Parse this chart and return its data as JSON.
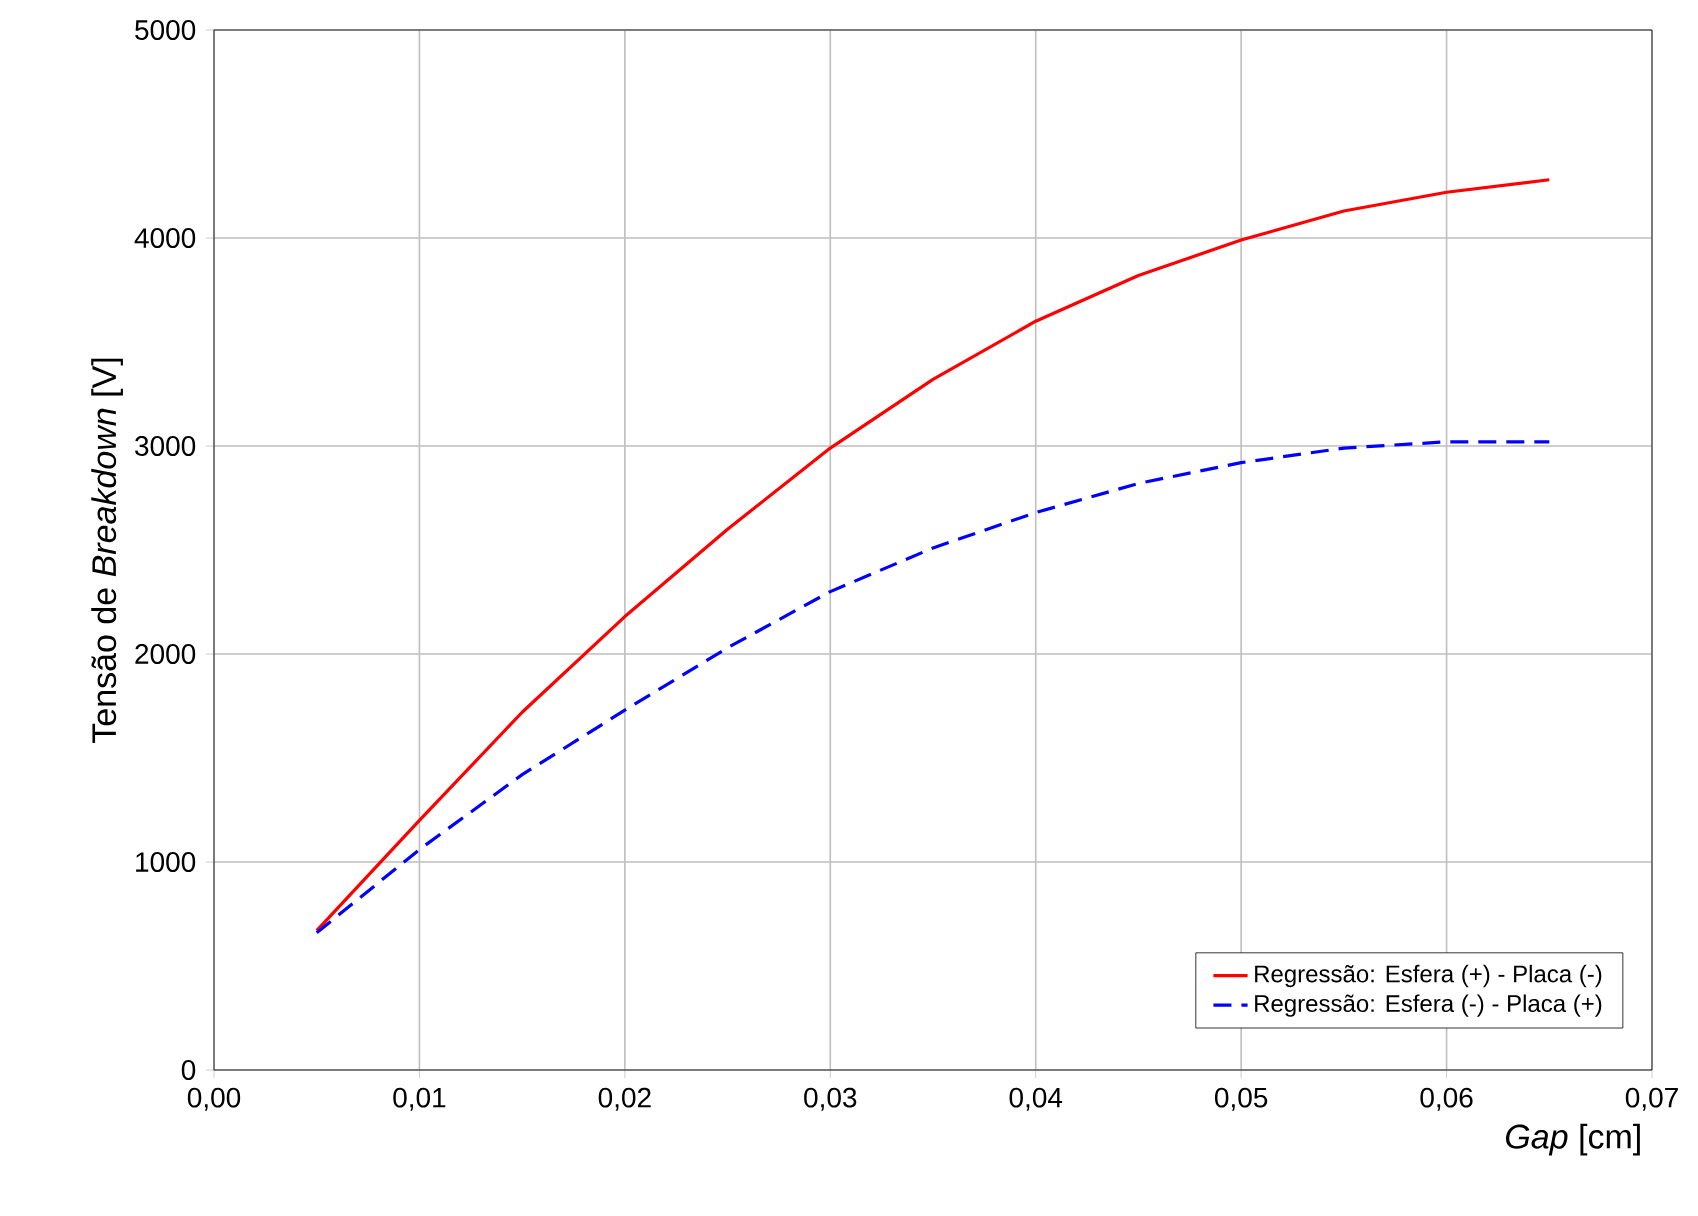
{
  "chart_data": {
    "type": "line",
    "xlabel": "*Gap* [cm]",
    "ylabel": "Tensão de *Breakdown* [V]",
    "x": [
      0.005,
      0.01,
      0.015,
      0.02,
      0.025,
      0.03,
      0.035,
      0.04,
      0.045,
      0.05,
      0.055,
      0.06,
      0.065
    ],
    "series": [
      {
        "name": "Regressão: Esfera (+) - Placa (-)",
        "color": "#ff0000",
        "line_style": "solid",
        "values": [
          670,
          1200,
          1720,
          2180,
          2600,
          2990,
          3320,
          3600,
          3820,
          3990,
          4130,
          4220,
          4280
        ]
      },
      {
        "name": "Regressão: Esfera (-) - Placa (+)",
        "color": "#0000ff",
        "line_style": "dashed",
        "values": [
          660,
          1060,
          1420,
          1730,
          2030,
          2300,
          2510,
          2680,
          2820,
          2920,
          2990,
          3020,
          3020
        ]
      }
    ],
    "xlim": [
      0,
      0.07
    ],
    "ylim": [
      0,
      5000
    ],
    "xticks": [
      {
        "value": 0,
        "label": "0,00"
      },
      {
        "value": 0.01,
        "label": "0,01"
      },
      {
        "value": 0.02,
        "label": "0,02"
      },
      {
        "value": 0.03,
        "label": "0,03"
      },
      {
        "value": 0.04,
        "label": "0,04"
      },
      {
        "value": 0.05,
        "label": "0,05"
      },
      {
        "value": 0.06,
        "label": "0,06"
      },
      {
        "value": 0.07,
        "label": "0,07"
      }
    ],
    "yticks": [
      0,
      1000,
      2000,
      3000,
      4000,
      5000
    ],
    "grid": true,
    "legend": "bottom right",
    "marker": "none"
  }
}
